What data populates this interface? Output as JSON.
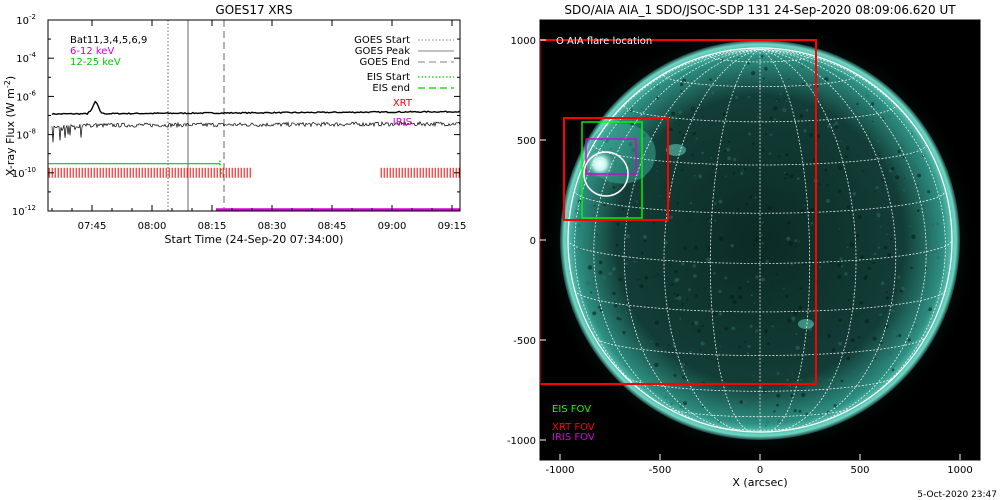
{
  "left_panel": {
    "title": "GOES17 XRS",
    "ylabel": "X-ray Flux (W m",
    "ylabel_sup": "-2",
    "ylabel_close": ")",
    "xlabel": "Start Time (24-Sep-20 07:34:00)",
    "legend_left": [
      {
        "text": "Bat11,3,4,5,6,9",
        "color": "#000000"
      },
      {
        "text": "6-12 keV",
        "color": "#d400d4"
      },
      {
        "text": "12-25 keV",
        "color": "#00cc00"
      }
    ],
    "legend_right": [
      {
        "text": "GOES Start",
        "color": "#000000",
        "swatch": "#9a9a9a",
        "style": "dotted"
      },
      {
        "text": "GOES Peak",
        "color": "#000000",
        "swatch": "#9a9a9a",
        "style": "solid"
      },
      {
        "text": "GOES End",
        "color": "#000000",
        "swatch": "#9a9a9a",
        "style": "dashed"
      },
      {
        "text": "EIS Start",
        "color": "#000000",
        "swatch": "#00cc00",
        "style": "dotted"
      },
      {
        "text": "EIS end",
        "color": "#000000",
        "swatch": "#00cc00",
        "style": "dashed"
      },
      {
        "text": "XRT",
        "color": "#ff0000",
        "swatch": "",
        "style": "none"
      },
      {
        "text": "IRIS",
        "color": "#d400d4",
        "swatch": "",
        "style": "none"
      }
    ]
  },
  "right_panel": {
    "title": "SDO/AIA AIA_1 SDO/JSOC-SDP 131 24-Sep-2020 08:09:06.620 UT",
    "xlabel": "X (arcsec)",
    "legend_flare": "O AIA flare location",
    "fov_legend": [
      {
        "text": "EIS FOV",
        "color": "#00ff00"
      },
      {
        "text": "XRT FOV",
        "color": "#ff0000"
      },
      {
        "text": "IRIS FOV",
        "color": "#d400d4"
      }
    ],
    "footer": "5-Oct-2020 23:47"
  },
  "chart_data": [
    {
      "type": "line",
      "title": "GOES17 XRS",
      "ylabel": "X-ray Flux (W m-2)",
      "xlabel": "Start Time (24-Sep-20 07:34:00)",
      "yscale": "log",
      "ylim": [
        1e-12,
        0.01
      ],
      "xlim": [
        "07:34",
        "09:17"
      ],
      "y_ticks": [
        {
          "label": "10",
          "exp": "-2",
          "value": -2
        },
        {
          "label": "10",
          "exp": "-4",
          "value": -4
        },
        {
          "label": "10",
          "exp": "-6",
          "value": -6
        },
        {
          "label": "10",
          "exp": "-8",
          "value": -8
        },
        {
          "label": "10",
          "exp": "-10",
          "value": -10
        },
        {
          "label": "10",
          "exp": "-12",
          "value": -12
        }
      ],
      "x_ticks": [
        "07:45",
        "08:00",
        "08:15",
        "08:30",
        "08:45",
        "09:00",
        "09:15"
      ],
      "series": [
        {
          "name": "6-12 keV",
          "approx_flux": 1.2e-07,
          "peak_time": "07:46",
          "peak_flux": 4e-07
        },
        {
          "name": "12-25 keV",
          "approx_flux": 3e-08
        }
      ],
      "markers": {
        "goes_start": "08:04",
        "goes_peak": "08:09",
        "goes_end": "08:18",
        "eis_start": "08:17",
        "eis_end": "08:17",
        "eis_level": 3e-10,
        "xrt_intervals": [
          [
            "07:34",
            "08:25"
          ],
          [
            "08:57",
            "09:17"
          ]
        ],
        "xrt_level": 1e-10,
        "iris_interval": [
          "08:16",
          "09:17"
        ],
        "iris_level": 1.2e-12
      }
    },
    {
      "type": "image",
      "title": "SDO/AIA AIA_1 SDO/JSOC-SDP 131 24-Sep-2020 08:09:06.620 UT",
      "xlabel": "X (arcsec)",
      "xlim": [
        -1100,
        1100
      ],
      "ylim": [
        -1100,
        1100
      ],
      "x_ticks": [
        -1000,
        -500,
        0,
        500,
        1000
      ],
      "y_ticks": [
        -1000,
        -500,
        0,
        500,
        1000
      ],
      "x_tick_labels": [
        "-1000",
        "-500",
        "0",
        "500",
        "1000"
      ],
      "y_tick_labels": [
        "-1000",
        "-500",
        "0",
        "500",
        "1000"
      ],
      "fov": {
        "xrt_large": [
          [
            -1100,
            1000
          ],
          [
            280,
            -720
          ]
        ],
        "xrt_small": [
          [
            -980,
            610
          ],
          [
            -460,
            100
          ]
        ],
        "eis": [
          [
            -890,
            590
          ],
          [
            -590,
            110
          ]
        ],
        "iris": [
          [
            -870,
            505
          ],
          [
            -620,
            330
          ]
        ],
        "flare_center": [
          -770,
          330
        ],
        "flare_radius_arcsec": 110
      }
    }
  ]
}
